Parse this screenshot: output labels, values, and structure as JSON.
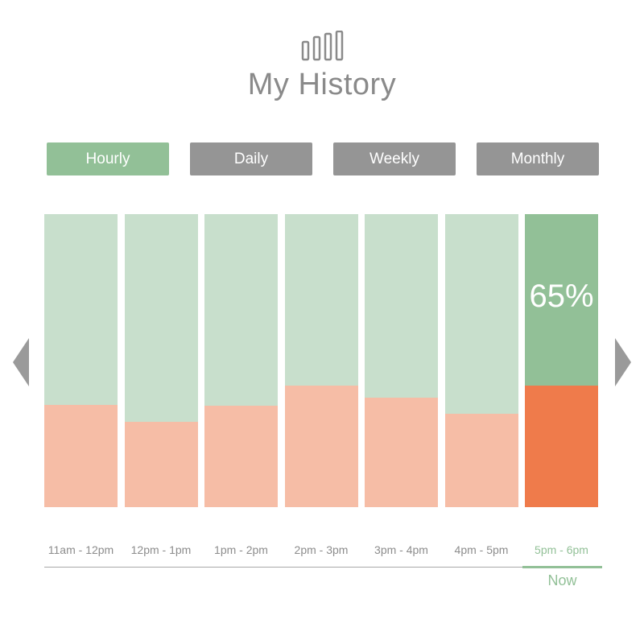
{
  "header": {
    "logo_icon": "bar-chart-icon",
    "title": "My History"
  },
  "tabs": [
    {
      "label": "Hourly",
      "active": true
    },
    {
      "label": "Daily",
      "active": false
    },
    {
      "label": "Weekly",
      "active": false
    },
    {
      "label": "Monthly",
      "active": false
    }
  ],
  "colors": {
    "accent_green": "#92c097",
    "light_green": "#c8dfcc",
    "tab_gray": "#959595",
    "fill_light_orange": "#f6bda6",
    "fill_orange": "#ef7b4b"
  },
  "chart_data": {
    "type": "bar",
    "categories": [
      "11am - 12pm",
      "12pm - 1pm",
      "1pm - 2pm",
      "2pm - 3pm",
      "3pm - 4pm",
      "4pm - 5pm",
      "5pm - 6pm"
    ],
    "values": [
      35,
      29,
      34.5,
      41.5,
      37.5,
      32,
      41.5
    ],
    "ylim": [
      0,
      100
    ],
    "current_index": 6,
    "current_label": "65%",
    "current_marker": "Now"
  },
  "navigation": {
    "prev_icon": "chevron-left-icon",
    "next_icon": "chevron-right-icon"
  }
}
